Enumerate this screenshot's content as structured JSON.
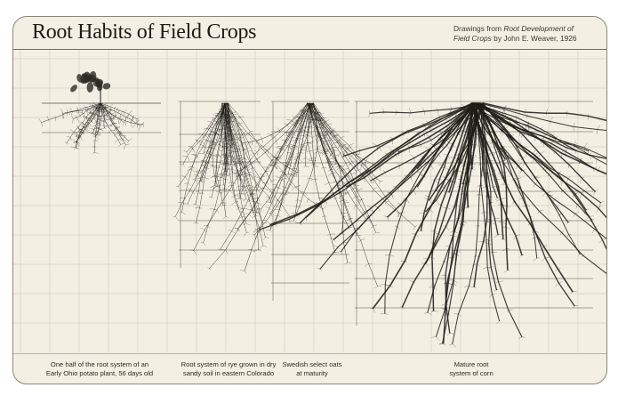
{
  "header": {
    "title": "Root Habits of Field Crops",
    "credit_prefix": "Drawings from",
    "credit_book": "Root Development of Field Crops",
    "credit_suffix": "by John E. Weaver, 1926"
  },
  "figures": [
    {
      "id": "potato",
      "caption_line1": "One half of the root system of an",
      "caption_line2": "Early Ohio potato plant, 56 days old"
    },
    {
      "id": "rye",
      "caption_line1": "Root system of rye grown in dry",
      "caption_line2": "sandy soil in eastern Colorado"
    },
    {
      "id": "oats",
      "caption_line1": "Swedish select oats",
      "caption_line2": "at maturity"
    },
    {
      "id": "corn",
      "caption_line1": "Mature root",
      "caption_line2": "system of corn"
    }
  ],
  "colors": {
    "paper": "#f3efe3",
    "ink": "#1d1c18",
    "grid": "#d4d0c1"
  }
}
